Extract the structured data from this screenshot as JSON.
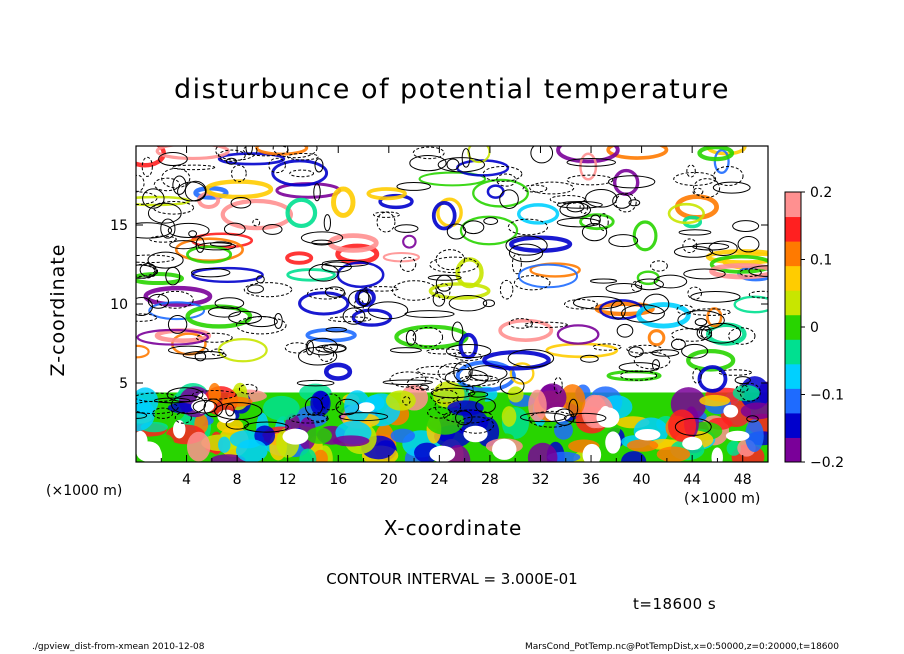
{
  "chart_data": {
    "type": "heatmap",
    "title": "disturbunce of potential temperature",
    "xlabel": "X-coordinate",
    "ylabel": "Z-coordinate",
    "x_unit_left": "(×1000 m)",
    "x_unit_right": "(×1000 m)",
    "xlim": [
      0,
      50
    ],
    "ylim": [
      0,
      20
    ],
    "x_ticks": [
      "4",
      "8",
      "12",
      "16",
      "20",
      "24",
      "28",
      "32",
      "36",
      "40",
      "44",
      "48"
    ],
    "y_ticks": [
      "5",
      "10",
      "15"
    ],
    "colorbar": {
      "range": [
        -0.2,
        0.2
      ],
      "labels": [
        "0.2",
        "0.1",
        "0",
        "−0.1",
        "−0.2"
      ]
    },
    "contour_interval": "CONTOUR INTERVAL = 3.000E-01",
    "time_label": "t=18600 s",
    "footer_left": "./gpview_dist-from-xmean  2010-12-08",
    "footer_right": "MarsCond_PotTemp.nc@PotTempDist,x=0:50000,z=0:20000,t=18600",
    "colors": [
      "#7a0099",
      "#0000cc",
      "#1e6bff",
      "#00d0ff",
      "#00e090",
      "#28d400",
      "#c8e600",
      "#ffcc00",
      "#ff7a00",
      "#ff2020",
      "#ff9090"
    ],
    "grid": false
  }
}
